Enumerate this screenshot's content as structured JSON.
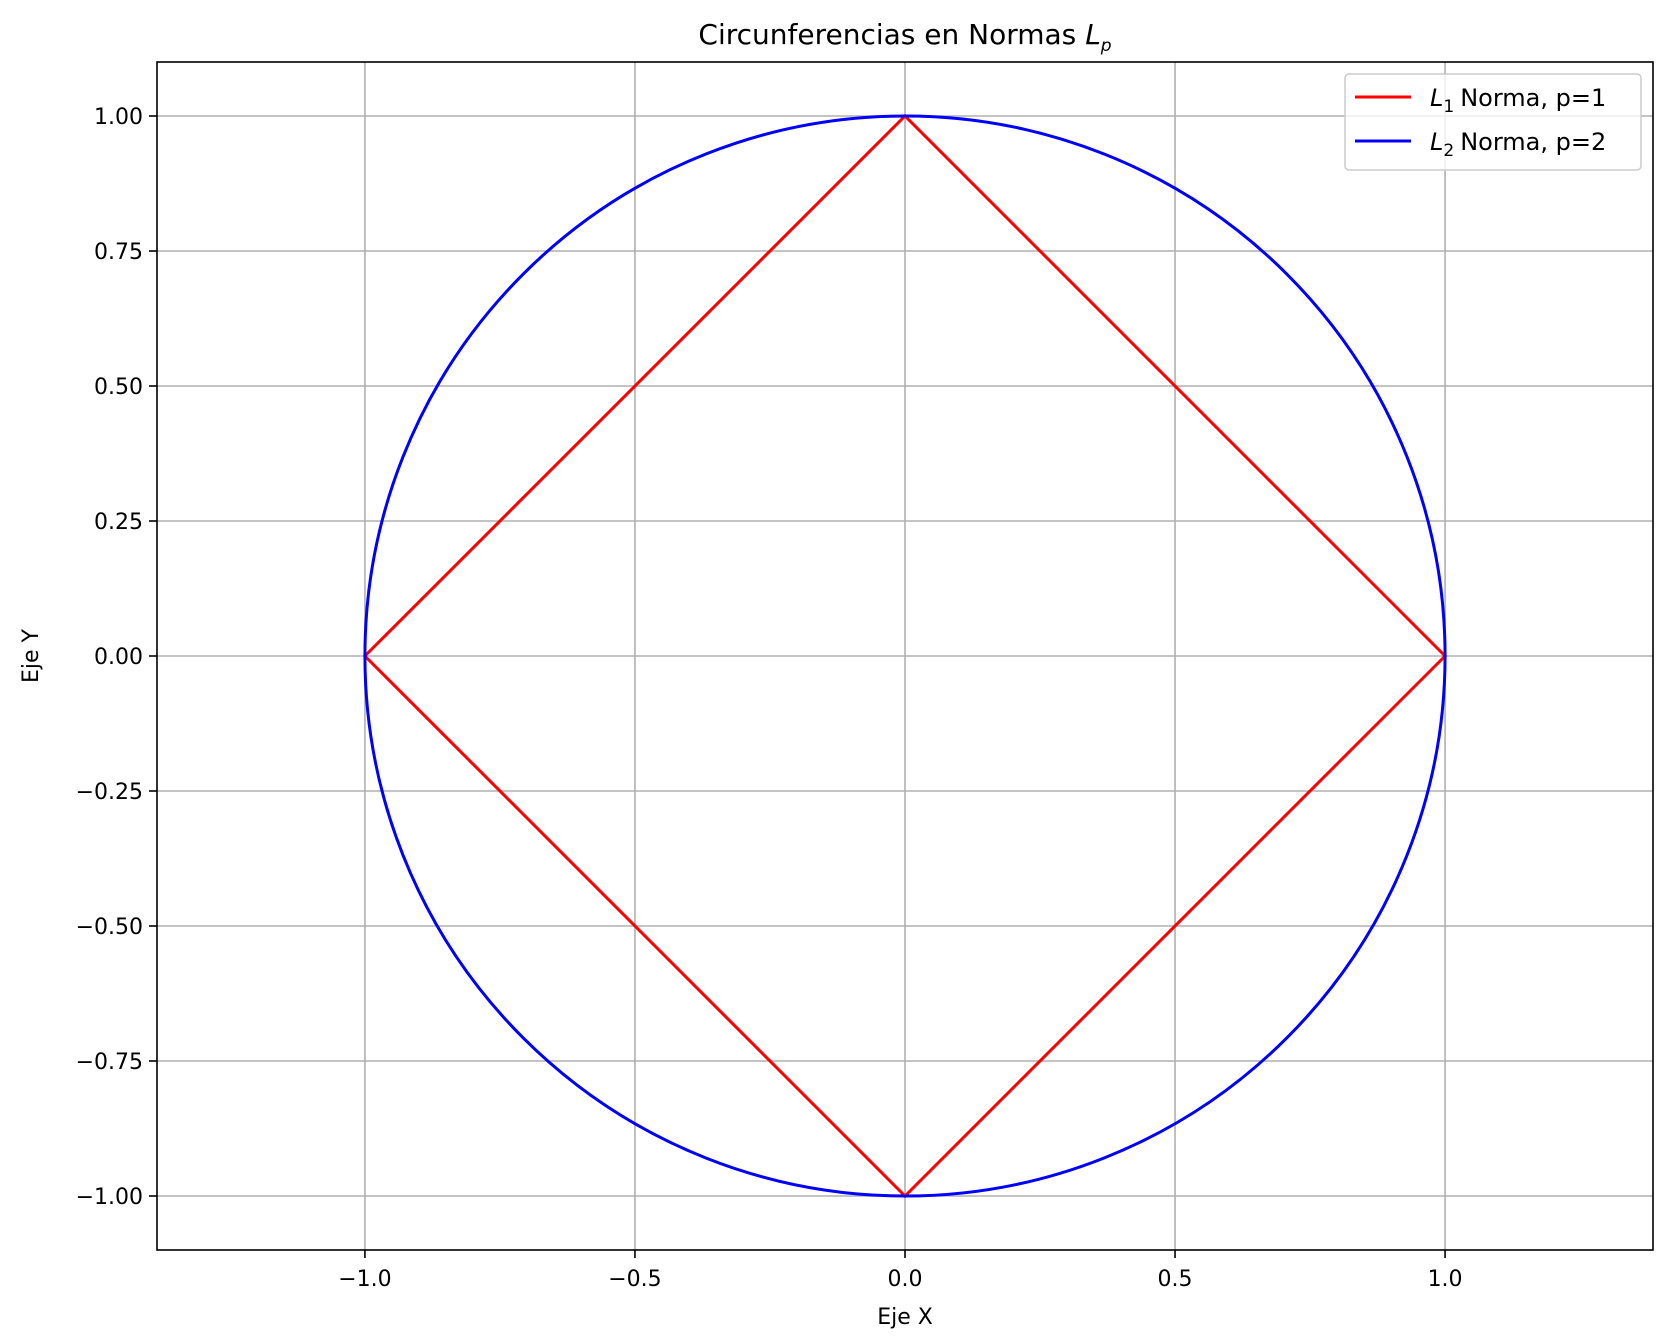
{
  "chart_data": {
    "type": "line",
    "title": "Circunferencias en Normas",
    "title_math": "L",
    "title_math_sub": "p",
    "xlabel": "Eje X",
    "ylabel": "Eje Y",
    "xlim": [
      -1.385,
      1.385
    ],
    "ylim": [
      -1.1,
      1.1
    ],
    "xticks": [
      -1.0,
      -0.5,
      0.0,
      0.5,
      1.0
    ],
    "xtick_labels": [
      "−1.0",
      "−0.5",
      "0.0",
      "0.5",
      "1.0"
    ],
    "yticks": [
      1.0,
      0.75,
      0.5,
      0.25,
      0.0,
      -0.25,
      -0.5,
      -0.75,
      -1.0
    ],
    "ytick_labels": [
      "1.00",
      "0.75",
      "0.50",
      "0.25",
      "0.00",
      "−0.25",
      "−0.50",
      "−0.75",
      "−1.00"
    ],
    "grid": true,
    "legend_position": "top-right",
    "series": [
      {
        "name_math": "L",
        "name_sub": "1",
        "name": "Norma, p=1",
        "color": "#ff0000",
        "p": 1,
        "x": [
          0,
          1,
          0,
          -1,
          0
        ],
        "y": [
          1,
          0,
          -1,
          0,
          1
        ]
      },
      {
        "name_math": "L",
        "name_sub": "2",
        "name": "Norma, p=2",
        "color": "#0000ff",
        "p": 2,
        "x": [
          1,
          0.7071,
          0,
          -0.7071,
          -1,
          -0.7071,
          0,
          0.7071,
          1
        ],
        "y": [
          0,
          0.7071,
          1,
          0.7071,
          0,
          -0.7071,
          -1,
          -0.7071,
          0
        ]
      }
    ]
  }
}
